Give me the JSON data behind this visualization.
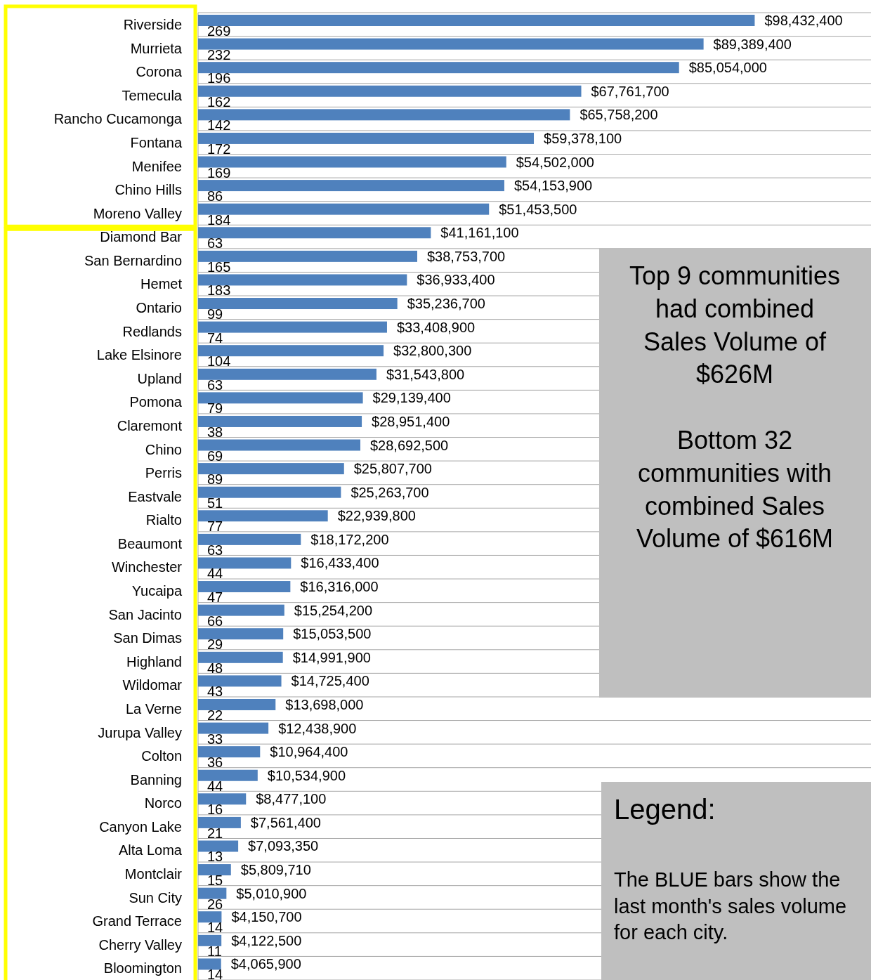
{
  "chart_data": {
    "type": "bar",
    "orientation": "horizontal",
    "categories": [
      "Riverside",
      "Murrieta",
      "Corona",
      "Temecula",
      "Rancho Cucamonga",
      "Fontana",
      "Menifee",
      "Chino Hills",
      "Moreno Valley",
      "Diamond Bar",
      "San Bernardino",
      "Hemet",
      "Ontario",
      "Redlands",
      "Lake Elsinore",
      "Upland",
      "Pomona",
      "Claremont",
      "Chino",
      "Perris",
      "Eastvale",
      "Rialto",
      "Beaumont",
      "Winchester",
      "Yucaipa",
      "San Jacinto",
      "San Dimas",
      "Highland",
      "Wildomar",
      "La Verne",
      "Jurupa Valley",
      "Colton",
      "Banning",
      "Norco",
      "Canyon Lake",
      "Alta Loma",
      "Montclair",
      "Sun City",
      "Grand Terrace",
      "Cherry Valley",
      "Bloomington"
    ],
    "series": [
      {
        "color": "#4f81bd",
        "values": [
          98432400,
          89389400,
          85054000,
          67761700,
          65758200,
          59378100,
          54502000,
          54153900,
          51453500,
          41161100,
          38753700,
          36933400,
          35236700,
          33408900,
          32800300,
          31543800,
          29139400,
          28951400,
          28692500,
          25807700,
          25263700,
          22939800,
          18172200,
          16433400,
          16316000,
          15254200,
          15053500,
          14991900,
          14725400,
          13698000,
          12438900,
          10964400,
          10534900,
          8477100,
          7561400,
          7093350,
          5809710,
          5010900,
          4150700,
          4122500,
          4065900
        ],
        "value_labels": [
          "$98,432,400",
          "$89,389,400",
          "$85,054,000",
          "$67,761,700",
          "$65,758,200",
          "$59,378,100",
          "$54,502,000",
          "$54,153,900",
          "$51,453,500",
          "$41,161,100",
          "$38,753,700",
          "$36,933,400",
          "$35,236,700",
          "$33,408,900",
          "$32,800,300",
          "$31,543,800",
          "$29,139,400",
          "$28,951,400",
          "$28,692,500",
          "$25,807,700",
          "$25,263,700",
          "$22,939,800",
          "$18,172,200",
          "$16,433,400",
          "$16,316,000",
          "$15,254,200",
          "$15,053,500",
          "$14,991,900",
          "$14,725,400",
          "$13,698,000",
          "$12,438,900",
          "$10,964,400",
          "$10,534,900",
          "$8,477,100",
          "$7,561,400",
          "$7,093,350",
          "$5,809,710",
          "$5,010,900",
          "$4,150,700",
          "$4,122,500",
          "$4,065,900"
        ]
      },
      {
        "color": "#c0504d",
        "values": [
          269,
          232,
          196,
          162,
          142,
          172,
          169,
          86,
          184,
          63,
          165,
          183,
          99,
          74,
          104,
          63,
          79,
          38,
          69,
          89,
          51,
          77,
          63,
          44,
          47,
          66,
          29,
          48,
          43,
          22,
          33,
          36,
          44,
          16,
          21,
          13,
          15,
          26,
          14,
          11,
          14
        ],
        "value_labels": [
          "269",
          "232",
          "196",
          "162",
          "142",
          "172",
          "169",
          "86",
          "184",
          "63",
          "165",
          "183",
          "99",
          "74",
          "104",
          "63",
          "79",
          "38",
          "69",
          "89",
          "51",
          "77",
          "63",
          "44",
          "47",
          "66",
          "29",
          "48",
          "43",
          "22",
          "33",
          "36",
          "44",
          "16",
          "21",
          "13",
          "15",
          "26",
          "14",
          "11",
          "14"
        ]
      }
    ],
    "xlim": [
      0,
      119000000
    ],
    "grid": "y",
    "annotations": [
      "Top 9 communities had combined Sales Volume of $626M",
      "Bottom 32 communities with combined Sales Volume of $616M",
      "Legend:",
      "The BLUE bars show the last month's sales volume for each city."
    ]
  }
}
